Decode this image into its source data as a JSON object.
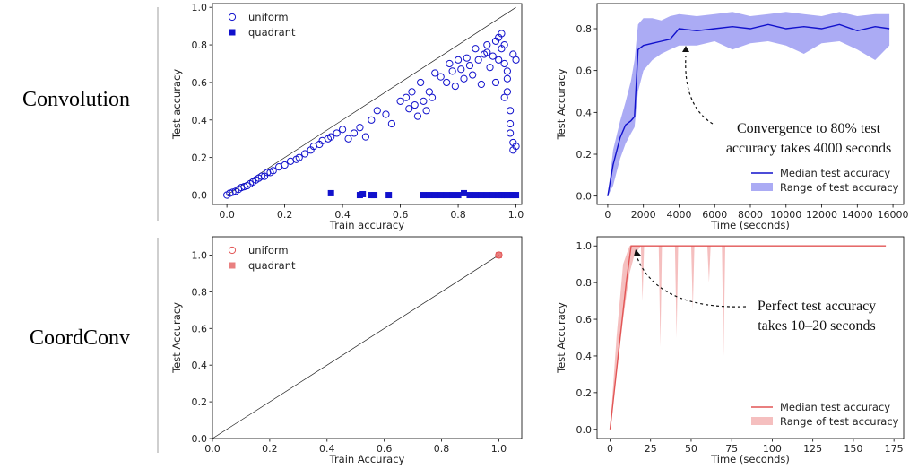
{
  "row_labels": {
    "top": "Convolution",
    "bottom": "CoordConv"
  },
  "colors": {
    "conv": "#1111cc",
    "conv_band": "#8f8ff0",
    "coord": "#e25555",
    "coord_band": "#f2a9a9"
  },
  "chart_data": [
    {
      "type": "scatter",
      "xlabel": "Train accuracy",
      "ylabel": "Test accuracy",
      "xlim": [
        -0.05,
        1.02
      ],
      "ylim": [
        -0.05,
        1.02
      ],
      "xticks": [
        "0.0",
        "0.2",
        "0.4",
        "0.6",
        "0.8",
        "1.0"
      ],
      "yticks": [
        "0.0",
        "0.2",
        "0.4",
        "0.6",
        "0.8",
        "1.0"
      ],
      "legend": [
        "uniform",
        "quadrant"
      ],
      "legend_position": "top-left",
      "series": [
        {
          "name": "uniform",
          "marker": "open-circle",
          "points": [
            [
              0.0,
              0.0
            ],
            [
              0.01,
              0.01
            ],
            [
              0.02,
              0.015
            ],
            [
              0.03,
              0.02
            ],
            [
              0.04,
              0.03
            ],
            [
              0.05,
              0.04
            ],
            [
              0.06,
              0.045
            ],
            [
              0.07,
              0.05
            ],
            [
              0.08,
              0.06
            ],
            [
              0.09,
              0.07
            ],
            [
              0.1,
              0.08
            ],
            [
              0.11,
              0.09
            ],
            [
              0.12,
              0.1
            ],
            [
              0.13,
              0.1
            ],
            [
              0.14,
              0.12
            ],
            [
              0.15,
              0.12
            ],
            [
              0.16,
              0.13
            ],
            [
              0.18,
              0.15
            ],
            [
              0.2,
              0.16
            ],
            [
              0.22,
              0.18
            ],
            [
              0.24,
              0.19
            ],
            [
              0.25,
              0.2
            ],
            [
              0.27,
              0.22
            ],
            [
              0.29,
              0.24
            ],
            [
              0.3,
              0.26
            ],
            [
              0.32,
              0.27
            ],
            [
              0.33,
              0.29
            ],
            [
              0.35,
              0.3
            ],
            [
              0.36,
              0.31
            ],
            [
              0.38,
              0.33
            ],
            [
              0.4,
              0.35
            ],
            [
              0.42,
              0.3
            ],
            [
              0.44,
              0.33
            ],
            [
              0.46,
              0.36
            ],
            [
              0.48,
              0.31
            ],
            [
              0.5,
              0.4
            ],
            [
              0.52,
              0.45
            ],
            [
              0.55,
              0.43
            ],
            [
              0.57,
              0.38
            ],
            [
              0.6,
              0.5
            ],
            [
              0.62,
              0.52
            ],
            [
              0.63,
              0.46
            ],
            [
              0.64,
              0.55
            ],
            [
              0.65,
              0.48
            ],
            [
              0.66,
              0.42
            ],
            [
              0.67,
              0.6
            ],
            [
              0.68,
              0.5
            ],
            [
              0.69,
              0.45
            ],
            [
              0.7,
              0.55
            ],
            [
              0.71,
              0.52
            ],
            [
              0.72,
              0.65
            ],
            [
              0.74,
              0.63
            ],
            [
              0.76,
              0.6
            ],
            [
              0.77,
              0.7
            ],
            [
              0.78,
              0.66
            ],
            [
              0.79,
              0.58
            ],
            [
              0.8,
              0.72
            ],
            [
              0.81,
              0.67
            ],
            [
              0.82,
              0.62
            ],
            [
              0.83,
              0.73
            ],
            [
              0.84,
              0.69
            ],
            [
              0.85,
              0.64
            ],
            [
              0.86,
              0.78
            ],
            [
              0.87,
              0.72
            ],
            [
              0.88,
              0.59
            ],
            [
              0.89,
              0.75
            ],
            [
              0.9,
              0.76
            ],
            [
              0.9,
              0.8
            ],
            [
              0.91,
              0.68
            ],
            [
              0.92,
              0.74
            ],
            [
              0.93,
              0.82
            ],
            [
              0.93,
              0.6
            ],
            [
              0.94,
              0.84
            ],
            [
              0.94,
              0.72
            ],
            [
              0.95,
              0.86
            ],
            [
              0.95,
              0.78
            ],
            [
              0.96,
              0.8
            ],
            [
              0.96,
              0.7
            ],
            [
              0.97,
              0.62
            ],
            [
              0.97,
              0.55
            ],
            [
              0.98,
              0.45
            ],
            [
              0.98,
              0.38
            ],
            [
              0.98,
              0.33
            ],
            [
              0.99,
              0.75
            ],
            [
              0.99,
              0.28
            ],
            [
              0.99,
              0.24
            ],
            [
              1.0,
              0.72
            ],
            [
              1.0,
              0.26
            ],
            [
              0.97,
              0.66
            ],
            [
              0.96,
              0.52
            ]
          ]
        },
        {
          "name": "quadrant",
          "marker": "filled-square",
          "points": [
            [
              0.36,
              0.01
            ],
            [
              0.46,
              0.0
            ],
            [
              0.47,
              0.005
            ],
            [
              0.5,
              0.0
            ],
            [
              0.51,
              0.0
            ],
            [
              0.56,
              0.0
            ],
            [
              0.68,
              0.0
            ],
            [
              0.7,
              0.0
            ],
            [
              0.72,
              0.0
            ],
            [
              0.74,
              0.0
            ],
            [
              0.76,
              0.0
            ],
            [
              0.78,
              0.0
            ],
            [
              0.8,
              0.0
            ],
            [
              0.82,
              0.01
            ],
            [
              0.84,
              0.0
            ],
            [
              0.86,
              0.0
            ],
            [
              0.88,
              0.0
            ],
            [
              0.9,
              0.0
            ],
            [
              0.92,
              0.0
            ],
            [
              0.94,
              0.0
            ],
            [
              0.95,
              0.0
            ],
            [
              0.96,
              0.0
            ],
            [
              0.97,
              0.0
            ],
            [
              0.98,
              0.0
            ],
            [
              0.99,
              0.0
            ],
            [
              1.0,
              0.0
            ]
          ]
        }
      ]
    },
    {
      "type": "line",
      "xlabel": "Time (seconds)",
      "ylabel": "Test Accuracy",
      "xlim": [
        -600,
        16600
      ],
      "ylim": [
        -0.04,
        0.92
      ],
      "xticks": [
        "0",
        "2000",
        "4000",
        "6000",
        "8000",
        "10000",
        "12000",
        "14000",
        "16000"
      ],
      "yticks": [
        "0.0",
        "0.2",
        "0.4",
        "0.6",
        "0.8"
      ],
      "legend": [
        "Median test accuracy",
        "Range of test accuracy"
      ],
      "legend_position": "bottom-right",
      "annotation": [
        "Convergence to 80% test",
        "accuracy takes 4000 seconds"
      ],
      "median": [
        [
          0,
          0.0
        ],
        [
          300,
          0.15
        ],
        [
          700,
          0.28
        ],
        [
          1000,
          0.34
        ],
        [
          1300,
          0.36
        ],
        [
          1500,
          0.38
        ],
        [
          1700,
          0.7
        ],
        [
          2000,
          0.72
        ],
        [
          2500,
          0.73
        ],
        [
          3000,
          0.74
        ],
        [
          3500,
          0.75
        ],
        [
          4000,
          0.8
        ],
        [
          5000,
          0.79
        ],
        [
          6000,
          0.8
        ],
        [
          7000,
          0.81
        ],
        [
          8000,
          0.8
        ],
        [
          9000,
          0.82
        ],
        [
          10000,
          0.8
        ],
        [
          11000,
          0.81
        ],
        [
          12000,
          0.8
        ],
        [
          13000,
          0.82
        ],
        [
          14000,
          0.79
        ],
        [
          15000,
          0.81
        ],
        [
          15800,
          0.8
        ]
      ],
      "range_low": [
        [
          0,
          0.0
        ],
        [
          300,
          0.05
        ],
        [
          700,
          0.18
        ],
        [
          1000,
          0.25
        ],
        [
          1300,
          0.3
        ],
        [
          1500,
          0.33
        ],
        [
          1700,
          0.5
        ],
        [
          2000,
          0.6
        ],
        [
          2500,
          0.65
        ],
        [
          3000,
          0.68
        ],
        [
          3500,
          0.7
        ],
        [
          4000,
          0.72
        ],
        [
          5000,
          0.72
        ],
        [
          6000,
          0.74
        ],
        [
          7000,
          0.7
        ],
        [
          8000,
          0.73
        ],
        [
          9000,
          0.74
        ],
        [
          10000,
          0.72
        ],
        [
          11000,
          0.68
        ],
        [
          12000,
          0.73
        ],
        [
          13000,
          0.74
        ],
        [
          14000,
          0.7
        ],
        [
          15000,
          0.65
        ],
        [
          15800,
          0.72
        ]
      ],
      "range_high": [
        [
          0,
          0.0
        ],
        [
          300,
          0.22
        ],
        [
          700,
          0.36
        ],
        [
          1000,
          0.45
        ],
        [
          1300,
          0.55
        ],
        [
          1500,
          0.65
        ],
        [
          1700,
          0.82
        ],
        [
          2000,
          0.85
        ],
        [
          2500,
          0.85
        ],
        [
          3000,
          0.84
        ],
        [
          3500,
          0.86
        ],
        [
          4000,
          0.87
        ],
        [
          5000,
          0.86
        ],
        [
          6000,
          0.87
        ],
        [
          7000,
          0.88
        ],
        [
          8000,
          0.86
        ],
        [
          9000,
          0.87
        ],
        [
          10000,
          0.88
        ],
        [
          11000,
          0.87
        ],
        [
          12000,
          0.86
        ],
        [
          13000,
          0.88
        ],
        [
          14000,
          0.86
        ],
        [
          15000,
          0.87
        ],
        [
          15800,
          0.87
        ]
      ]
    },
    {
      "type": "scatter",
      "xlabel": "Train Accuracy",
      "ylabel": "Test Accuracy",
      "xlim": [
        0.0,
        1.08
      ],
      "ylim": [
        0.0,
        1.1
      ],
      "xticks": [
        "0.0",
        "0.2",
        "0.4",
        "0.6",
        "0.8",
        "1.0"
      ],
      "yticks": [
        "0.0",
        "0.2",
        "0.4",
        "0.6",
        "0.8",
        "1.0"
      ],
      "legend": [
        "uniform",
        "quadrant"
      ],
      "legend_position": "top-left",
      "series": [
        {
          "name": "uniform",
          "marker": "open-circle",
          "points": [
            [
              1.0,
              1.0
            ]
          ]
        },
        {
          "name": "quadrant",
          "marker": "filled-square",
          "points": [
            [
              1.0,
              1.0
            ]
          ]
        }
      ]
    },
    {
      "type": "line",
      "xlabel": "Time (seconds)",
      "ylabel": "Test Accuracy",
      "xlim": [
        -8,
        181
      ],
      "ylim": [
        -0.05,
        1.05
      ],
      "xticks": [
        "0",
        "25",
        "50",
        "75",
        "100",
        "125",
        "150",
        "175"
      ],
      "yticks": [
        "0.0",
        "0.2",
        "0.4",
        "0.6",
        "0.8",
        "1.0"
      ],
      "legend": [
        "Median test accuracy",
        "Range of test accuracy"
      ],
      "legend_position": "bottom-right",
      "annotation": [
        "Perfect test accuracy",
        "takes 10–20 seconds"
      ],
      "median": [
        [
          0,
          0.0
        ],
        [
          5,
          0.4
        ],
        [
          10,
          0.8
        ],
        [
          13,
          1.0
        ],
        [
          20,
          1.0
        ],
        [
          170,
          1.0
        ]
      ],
      "range_low": [
        [
          0,
          0.0
        ],
        [
          4,
          0.3
        ],
        [
          8,
          0.6
        ],
        [
          12,
          0.85
        ],
        [
          15,
          0.95
        ],
        [
          19,
          1.0
        ],
        [
          20,
          0.7
        ],
        [
          21,
          1.0
        ],
        [
          30,
          1.0
        ],
        [
          31,
          0.45
        ],
        [
          32,
          1.0
        ],
        [
          40,
          1.0
        ],
        [
          41,
          0.5
        ],
        [
          42,
          1.0
        ],
        [
          50,
          1.0
        ],
        [
          51,
          0.65
        ],
        [
          52,
          1.0
        ],
        [
          60,
          1.0
        ],
        [
          61,
          0.8
        ],
        [
          62,
          1.0
        ],
        [
          69,
          1.0
        ],
        [
          70,
          0.4
        ],
        [
          71,
          1.0
        ],
        [
          170,
          1.0
        ]
      ],
      "range_high": [
        [
          0,
          0.0
        ],
        [
          4,
          0.5
        ],
        [
          8,
          0.9
        ],
        [
          12,
          1.0
        ],
        [
          170,
          1.0
        ]
      ]
    }
  ]
}
